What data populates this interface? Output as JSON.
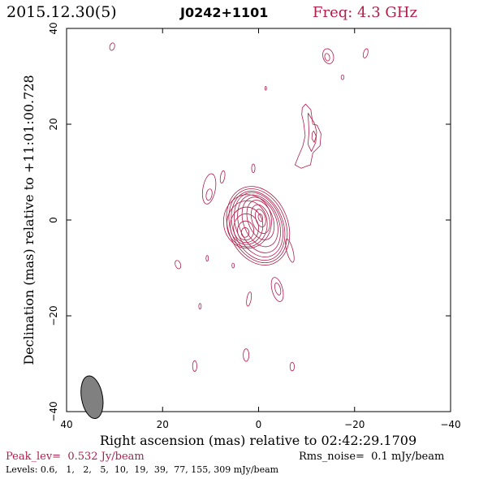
{
  "header": {
    "date": "2015.12.30(5)",
    "source": "J0242+1101",
    "frequency": "Freq: 4.3 GHz"
  },
  "colors": {
    "contour": "#b01e4a",
    "text_accent": "#b01e4a",
    "beam_fill": "#808080",
    "frame": "#000000"
  },
  "chart_data": {
    "type": "contour",
    "xlabel": "Right ascension (mas) relative to 02:42:29.1709",
    "ylabel": "Declination (mas) relative to +11:01:00.728",
    "xlim": [
      40,
      -40
    ],
    "ylim": [
      -40,
      40
    ],
    "x_ticks": [
      40,
      20,
      0,
      -20,
      -40
    ],
    "x_tick_labels": [
      "40",
      "20",
      "0",
      "−20",
      "−40"
    ],
    "y_ticks": [
      -40,
      -20,
      0,
      20,
      40
    ],
    "y_tick_labels": [
      "−40",
      "−20",
      "0",
      "20",
      "40"
    ],
    "peak_level": "Peak_lev=  0.532 Jy/beam",
    "rms_noise": "Rms_noise=  0.1 mJy/beam",
    "levels_text": "Levels: 0.6,   1,   2,   5,  10,  19,  39,  77, 155, 309 mJy/beam",
    "levels_mjy_per_beam": [
      0.6,
      1,
      2,
      5,
      10,
      19,
      39,
      77,
      155,
      309
    ],
    "beam": {
      "x": 34.7,
      "y": -37.0,
      "major": 4.5,
      "minor": 2.2,
      "pa_deg": -10
    },
    "core": [
      {
        "x": 0.1,
        "y": -1.2,
        "rx": 6.2,
        "ry": 8.5,
        "rot": -22
      },
      {
        "x": 0.1,
        "y": -1.2,
        "rx": 5.7,
        "ry": 8.0,
        "rot": -22
      },
      {
        "x": 0.1,
        "y": -1.2,
        "rx": 5.2,
        "ry": 7.5,
        "rot": -22
      },
      {
        "x": 0.0,
        "y": -1.0,
        "rx": 4.7,
        "ry": 7.0,
        "rot": -22
      },
      {
        "x": -0.1,
        "y": -0.8,
        "rx": 4.1,
        "ry": 6.3,
        "rot": -22
      },
      {
        "x": -0.3,
        "y": -0.4,
        "rx": 3.4,
        "ry": 5.4,
        "rot": -22
      },
      {
        "x": -0.4,
        "y": 0.0,
        "rx": 2.6,
        "ry": 4.3,
        "rot": -20
      },
      {
        "x": -0.4,
        "y": 0.2,
        "rx": 1.8,
        "ry": 3.1,
        "rot": -18
      },
      {
        "x": -0.4,
        "y": 0.4,
        "rx": 1.0,
        "ry": 1.9,
        "rot": -15
      },
      {
        "x": -0.4,
        "y": 0.5,
        "rx": 0.45,
        "ry": 0.8,
        "rot": -15
      },
      {
        "x": 2.3,
        "y": -0.3,
        "rx": 5.0,
        "ry": 5.6,
        "rot": 0
      },
      {
        "x": 2.4,
        "y": -0.8,
        "rx": 4.2,
        "ry": 4.8,
        "rot": 0
      },
      {
        "x": 2.5,
        "y": -1.2,
        "rx": 3.4,
        "ry": 3.9,
        "rot": 0
      },
      {
        "x": 2.6,
        "y": -1.7,
        "rx": 2.6,
        "ry": 3.0,
        "rot": 0
      },
      {
        "x": 2.7,
        "y": -2.2,
        "rx": 1.7,
        "ry": 2.0,
        "rot": 0
      },
      {
        "x": 2.8,
        "y": -2.6,
        "rx": 0.8,
        "ry": 1.0,
        "rot": 0
      }
    ],
    "components": [
      {
        "x": 30.5,
        "y": 36.2,
        "rx": 0.5,
        "ry": 0.8,
        "rot": 15
      },
      {
        "x": -14.5,
        "y": 34.2,
        "rx": 1.1,
        "ry": 1.6,
        "rot": -15
      },
      {
        "x": -14.3,
        "y": 34.0,
        "rx": 0.5,
        "ry": 0.8,
        "rot": -15
      },
      {
        "x": -22.3,
        "y": 34.8,
        "rx": 0.45,
        "ry": 1.0,
        "rot": 15
      },
      {
        "x": -17.5,
        "y": 29.8,
        "rx": 0.3,
        "ry": 0.5,
        "rot": 0
      },
      {
        "x": -1.5,
        "y": 27.5,
        "rx": 0.15,
        "ry": 0.4,
        "rot": 0
      },
      {
        "x": 10.3,
        "y": 6.5,
        "rx": 1.3,
        "ry": 3.2,
        "rot": 10
      },
      {
        "x": 10.3,
        "y": 5.3,
        "rx": 0.6,
        "ry": 1.2,
        "rot": 10
      },
      {
        "x": 7.5,
        "y": 9.0,
        "rx": 0.45,
        "ry": 1.3,
        "rot": 10
      },
      {
        "x": 1.1,
        "y": 10.8,
        "rx": 0.35,
        "ry": 0.9,
        "rot": 0
      },
      {
        "x": 16.8,
        "y": -9.3,
        "rx": 0.55,
        "ry": 0.9,
        "rot": -20
      },
      {
        "x": 10.7,
        "y": -8.0,
        "rx": 0.25,
        "ry": 0.6,
        "rot": 0
      },
      {
        "x": 5.3,
        "y": -9.5,
        "rx": 0.25,
        "ry": 0.5,
        "rot": 0
      },
      {
        "x": -6.5,
        "y": -6.4,
        "rx": 0.65,
        "ry": 2.5,
        "rot": -15
      },
      {
        "x": -3.9,
        "y": -14.5,
        "rx": 1.1,
        "ry": 2.6,
        "rot": -15
      },
      {
        "x": -4.0,
        "y": -14.4,
        "rx": 0.55,
        "ry": 1.3,
        "rot": -15
      },
      {
        "x": 2.0,
        "y": -16.5,
        "rx": 0.45,
        "ry": 1.5,
        "rot": 10
      },
      {
        "x": 12.2,
        "y": -18.0,
        "rx": 0.25,
        "ry": 0.6,
        "rot": 0
      },
      {
        "x": 2.6,
        "y": -28.2,
        "rx": 0.6,
        "ry": 1.3,
        "rot": 0
      },
      {
        "x": 13.3,
        "y": -30.5,
        "rx": 0.45,
        "ry": 1.1,
        "rot": 0
      },
      {
        "x": -7.0,
        "y": -30.6,
        "rx": 0.45,
        "ry": 0.9,
        "rot": 0
      }
    ],
    "extended_features": [
      {
        "points": [
          [
            -9.8,
            24.2
          ],
          [
            -10.9,
            23.0
          ],
          [
            -11.3,
            20.0
          ],
          [
            -12.2,
            19.8
          ],
          [
            -13.0,
            18.0
          ],
          [
            -12.8,
            15.5
          ],
          [
            -11.3,
            14.0
          ],
          [
            -10.8,
            11.5
          ],
          [
            -9.9,
            11.2
          ],
          [
            -8.9,
            10.8
          ],
          [
            -7.6,
            11.5
          ],
          [
            -8.3,
            13.3
          ],
          [
            -9.2,
            15.4
          ],
          [
            -9.7,
            17.6
          ],
          [
            -9.4,
            20.2
          ],
          [
            -9.0,
            22.0
          ],
          [
            -9.1,
            23.4
          ]
        ],
        "closed": true
      },
      {
        "points": [
          [
            -10.3,
            22.3
          ],
          [
            -11.6,
            20.3
          ],
          [
            -12.1,
            18.4
          ],
          [
            -11.9,
            16.2
          ],
          [
            -11.0,
            14.3
          ],
          [
            -10.3,
            15.8
          ],
          [
            -10.5,
            18.4
          ],
          [
            -10.4,
            20.5
          ]
        ],
        "closed": true
      },
      {
        "points": [
          [
            -11.5,
            18.6
          ],
          [
            -12.0,
            17.5
          ],
          [
            -11.6,
            16.2
          ],
          [
            -11.1,
            17.0
          ],
          [
            -11.2,
            18.2
          ]
        ],
        "closed": true
      }
    ]
  }
}
